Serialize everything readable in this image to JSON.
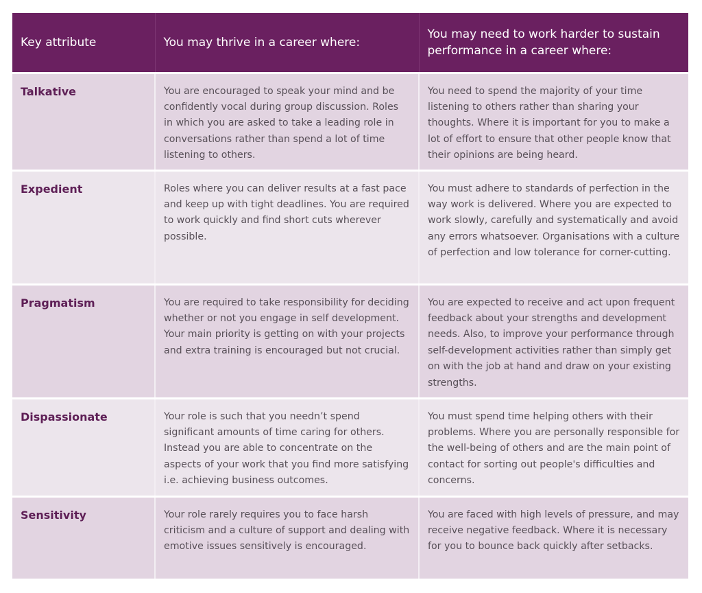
{
  "header": {
    "col1": "Key attribute",
    "col2": "You may thrive in a career where:",
    "col3": "You may need to work harder to sustain performance in a career where:"
  },
  "rows": [
    {
      "attribute": "Talkative",
      "thrive": "You are encouraged to speak your mind and be confidently vocal during group discussion. Roles in which you are asked to take a leading role in conversations rather than spend a lot of time listening to others.",
      "harder": "You need to spend the majority of your time listening to others rather than sharing your thoughts. Where it is important for you to make a lot of effort to ensure that other people know that their opinions are being heard."
    },
    {
      "attribute": "Expedient",
      "thrive": "Roles where you can deliver results at a fast pace and keep up with tight deadlines. You are required to work quickly and find short cuts wherever possible.",
      "harder": "You must adhere to standards of perfection in the way work is delivered. Where you are expected to work slowly, carefully and systematically and avoid any errors whatsoever. Organisations with a culture of perfection and low tolerance for corner-cutting."
    },
    {
      "attribute": "Pragmatism",
      "thrive": "You are required to take responsibility for deciding whether or not you engage in self development. Your main priority is getting on with your projects and extra training is encouraged but not crucial.",
      "harder": "You are expected to receive and act upon frequent feedback about your strengths and development needs. Also, to improve your performance through self-development activities rather than simply get on with the job at hand and draw on your existing strengths."
    },
    {
      "attribute": "Dispassionate",
      "thrive": "Your role is such that you needn’t spend significant amounts of time caring for others. Instead you are able to concentrate on the aspects of your work that you find more satisfying i.e. achieving business outcomes.",
      "harder": "You must spend time helping others with their problems. Where you are personally responsible for the well-being of others and are the main point of contact for sorting out people's difficulties and concerns."
    },
    {
      "attribute": "Sensitivity",
      "thrive": "Your role rarely requires you to face harsh criticism and a culture of support and dealing with emotive issues sensitively is encouraged.",
      "harder": "You are faced with high levels of pressure, and may receive negative feedback. Where it is necessary for you to bounce back quickly after setbacks."
    }
  ],
  "colors": {
    "header_bg": "#6a2060",
    "row_dark": "#e2d4e1",
    "row_light": "#ece5ec",
    "attribute_text": "#5e1f56"
  }
}
